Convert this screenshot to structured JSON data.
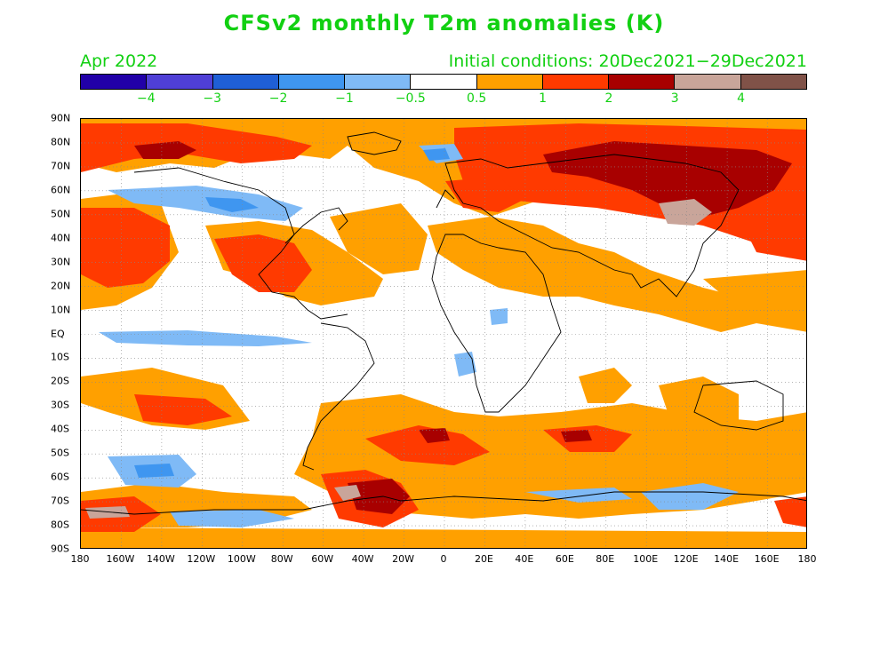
{
  "title": "CFSv2 monthly T2m anomalies (K)",
  "month": "Apr 2022",
  "initial_conditions": "Initial conditions: 20Dec2021−29Dec2021",
  "colorbar": {
    "colors": [
      "#2100a8",
      "#4f3fd6",
      "#1f5fd6",
      "#3f96f0",
      "#7fbaf6",
      "#ffffff",
      "#ffa000",
      "#ff3a00",
      "#a80000",
      "#c9a59a",
      "#805248"
    ],
    "labels": [
      "−4",
      "−3",
      "−2",
      "−1",
      "−0.5",
      "0.5",
      "1",
      "2",
      "3",
      "4"
    ]
  },
  "lat_labels": [
    "90N",
    "80N",
    "70N",
    "60N",
    "50N",
    "40N",
    "30N",
    "20N",
    "10N",
    "EQ",
    "10S",
    "20S",
    "30S",
    "40S",
    "50S",
    "60S",
    "70S",
    "80S",
    "90S"
  ],
  "lon_labels": [
    "180",
    "160W",
    "140W",
    "120W",
    "100W",
    "80W",
    "60W",
    "40W",
    "20W",
    "0",
    "20E",
    "40E",
    "60E",
    "80E",
    "100E",
    "120E",
    "140E",
    "160E",
    "180"
  ]
}
